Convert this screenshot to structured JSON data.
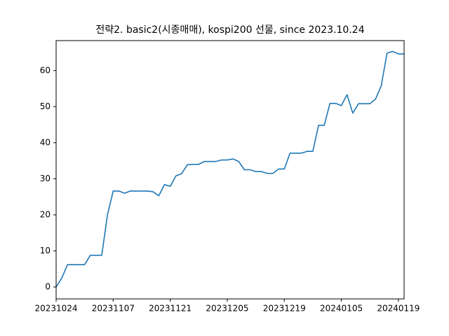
{
  "chart_data": {
    "type": "line",
    "title": "전략2. basic2(시종매매), kospi200 선물, since 2023.10.24",
    "categories": [
      "20231024",
      null,
      null,
      null,
      null,
      null,
      null,
      null,
      null,
      null,
      "20231107",
      null,
      null,
      null,
      null,
      null,
      null,
      null,
      null,
      null,
      "20231121",
      null,
      null,
      null,
      null,
      null,
      null,
      null,
      null,
      null,
      "20231205",
      null,
      null,
      null,
      null,
      null,
      null,
      null,
      null,
      null,
      "20231219",
      null,
      null,
      null,
      null,
      null,
      null,
      null,
      null,
      null,
      "20240105",
      null,
      null,
      null,
      null,
      null,
      null,
      null,
      null,
      null,
      "20240119",
      null
    ],
    "series": [
      {
        "name": "basic2",
        "color": "#1f77b4",
        "values": [
          0,
          2.5,
          6.2,
          6.2,
          6.2,
          6.2,
          8.8,
          8.8,
          8.8,
          20,
          26.6,
          26.6,
          26,
          26.6,
          26.6,
          26.6,
          26.6,
          26.4,
          25.3,
          28.4,
          27.9,
          30.8,
          31.4,
          33.9,
          34,
          34,
          34.8,
          34.8,
          34.8,
          35.2,
          35.2,
          35.5,
          34.8,
          32.5,
          32.5,
          32,
          32,
          31.5,
          31.5,
          32.7,
          32.7,
          37.1,
          37.1,
          37.1,
          37.6,
          37.6,
          44.8,
          44.8,
          50.9,
          50.9,
          50.3,
          53.3,
          48.2,
          50.8,
          50.8,
          50.8,
          52.1,
          55.8,
          64.8,
          65.3,
          64.6,
          64.6
        ]
      }
    ],
    "ylim": [
      -3.3,
      68.3
    ],
    "yticks": [
      0,
      10,
      20,
      30,
      40,
      50,
      60
    ],
    "grid": false
  }
}
